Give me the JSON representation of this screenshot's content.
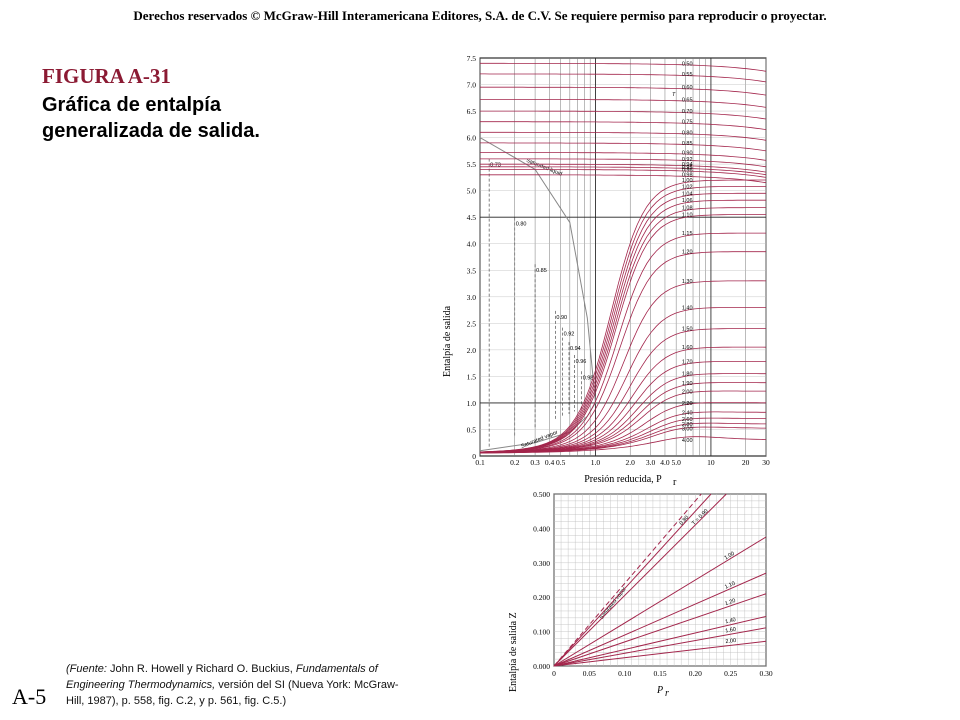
{
  "header": {
    "copyright": "Derechos reservados © McGraw-Hill Interamericana Editores, S.A. de C.V. Se requiere permiso para reproducir o proyectar."
  },
  "figure": {
    "label": "FIGURA A-31",
    "title": "Gráfica de entalpía generalizada de salida."
  },
  "source": {
    "prefix": "(Fuente:",
    "authors": " John R. Howell y Richard O. Buckius, ",
    "book": "Fundamentals of Engineering Thermodynamics,",
    "rest": " versión del SI (Nueva York: McGraw-Hill, 1987), p. 558, fig. C.2, y p. 561, fig. C.5.)"
  },
  "page_number": "A-5",
  "colors": {
    "curve": "#a3264c",
    "grid": "#777777",
    "sat": "#888888",
    "title": "#8b1a33"
  },
  "chart_data": [
    {
      "type": "line",
      "xscale": "log",
      "xlim": [
        0.1,
        30
      ],
      "ylim": [
        0,
        7.5
      ],
      "xticks": [
        "0.1",
        "0.2",
        "0.3",
        "0.4",
        "0.5",
        "1.0",
        "2.0",
        "3.0",
        "4.0",
        "5.0",
        "10",
        "20",
        "30"
      ],
      "xtick_values": [
        0.1,
        0.2,
        0.3,
        0.4,
        0.5,
        1.0,
        2.0,
        3.0,
        4.0,
        5.0,
        10,
        20,
        30
      ],
      "yticks": [
        "0",
        "0.5",
        "1.0",
        "1.5",
        "2.0",
        "2.5",
        "3.0",
        "3.5",
        "4.0",
        "4.5",
        "5.0",
        "5.5",
        "6.0",
        "6.5",
        "7.0",
        "7.5"
      ],
      "xlabel": "Presión reducida, P",
      "xlabel_sub": "r",
      "ylabel": "Entalpía de salida",
      "annotations": [
        "T",
        "Saturated liquid",
        "Saturated vapor"
      ],
      "isotherms_Tr": [
        "0.50",
        "0.55",
        "0.60",
        "0.65",
        "0.70",
        "0.75",
        "0.80",
        "0.85",
        "0.90",
        "0.92",
        "0.94",
        "0.95",
        "0.96",
        "0.98",
        "1.00",
        "1.02",
        "1.04",
        "1.06",
        "1.08",
        "1.10",
        "1.15",
        "1.20",
        "1.30",
        "1.40",
        "1.50",
        "1.60",
        "1.70",
        "1.80",
        "1.90",
        "2.00",
        "2.20",
        "2.40",
        "2.60",
        "2.80",
        "3.00",
        "4.00"
      ],
      "liquid_values": [
        7.4,
        7.2,
        6.95,
        6.72,
        6.5,
        6.3,
        6.1,
        5.9,
        5.72,
        5.6,
        5.5,
        5.45,
        5.4,
        5.3,
        5.2,
        5.08,
        4.95,
        4.82,
        4.68,
        4.55,
        4.2,
        3.85,
        3.3,
        2.8,
        2.4,
        2.05,
        1.78,
        1.55,
        1.38,
        1.22,
        1.0,
        0.82,
        0.7,
        0.6,
        0.52,
        0.3
      ],
      "saturated_liquid": {
        "x": [
          0.1,
          0.3,
          0.6,
          0.85,
          1.0
        ],
        "y": [
          6.0,
          5.4,
          4.4,
          2.6,
          1.0
        ]
      },
      "saturated_vapor": {
        "x": [
          0.1,
          0.3,
          0.6,
          0.85,
          1.0
        ],
        "y": [
          0.1,
          0.25,
          0.45,
          0.75,
          1.0
        ]
      },
      "dashed_Tr": [
        "0.73",
        "0.80",
        "0.85",
        "0.90",
        "0.92",
        "0.94",
        "0.96",
        "0.98"
      ],
      "dashed_x": [
        0.12,
        0.2,
        0.3,
        0.45,
        0.52,
        0.59,
        0.66,
        0.76
      ]
    },
    {
      "type": "line",
      "xlim": [
        0,
        0.3
      ],
      "ylim": [
        0,
        0.5
      ],
      "xticks": [
        "0",
        "0.05",
        "0.10",
        "0.15",
        "0.20",
        "0.25",
        "0.30"
      ],
      "xtick_values": [
        0,
        0.05,
        0.1,
        0.15,
        0.2,
        0.25,
        0.3
      ],
      "yticks": [
        "0.000",
        "0.100",
        "0.200",
        "0.300",
        "0.400",
        "0.500"
      ],
      "ytick_values": [
        0,
        0.1,
        0.2,
        0.3,
        0.4,
        0.5
      ],
      "xlabel": "P",
      "xlabel_sub": "r",
      "ylabel": "Entalpía de salida Z",
      "annotations": [
        "Saturated vapor"
      ],
      "series": [
        {
          "name": "T = 0.90",
          "slope": 2.05
        },
        {
          "name": "0.80",
          "slope": 2.25
        },
        {
          "name": "1.00",
          "slope": 1.25
        },
        {
          "name": "1.10",
          "slope": 0.9
        },
        {
          "name": "1.20",
          "slope": 0.7
        },
        {
          "name": "1.40",
          "slope": 0.48
        },
        {
          "name": "1.60",
          "slope": 0.37
        },
        {
          "name": "2.00",
          "slope": 0.24
        }
      ],
      "saturated_slope": 2.4
    }
  ]
}
